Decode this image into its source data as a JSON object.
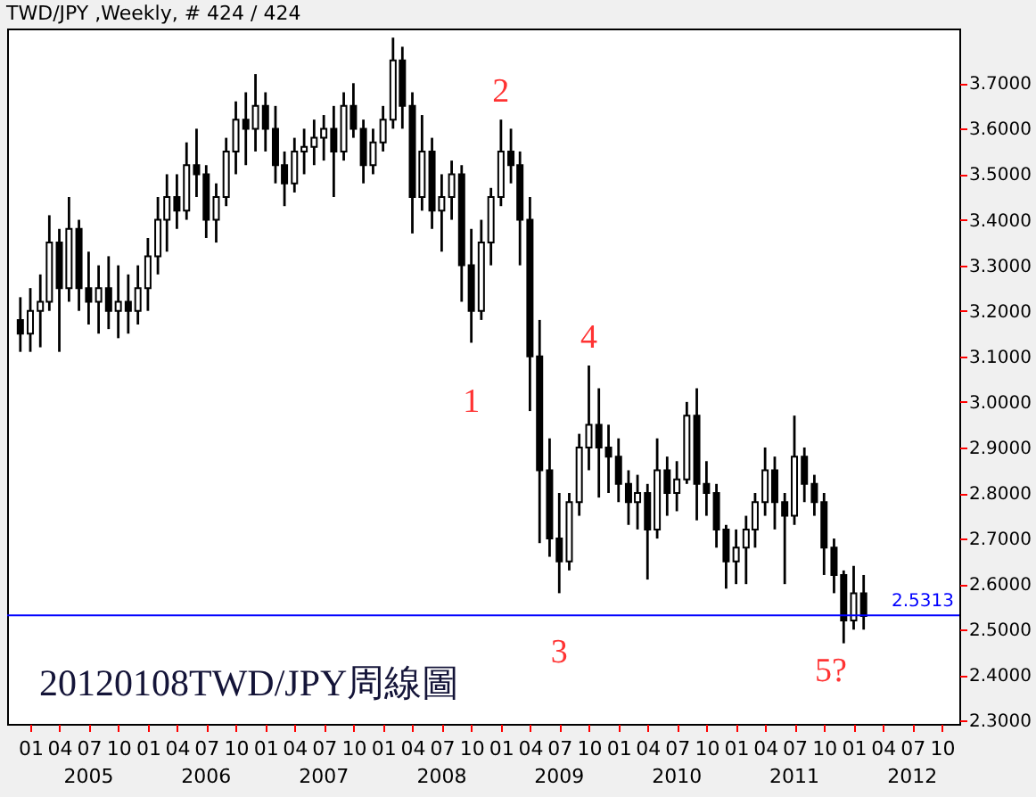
{
  "chart_data": {
    "type": "candlestick",
    "title": "TWD/JPY ,Weekly, # 424 / 424",
    "color": "#000000",
    "x": [
      "2004-12",
      "2005-01",
      "2005-02",
      "2005-03",
      "2005-04",
      "2005-05",
      "2005-06",
      "2005-07",
      "2005-08",
      "2005-09",
      "2005-10",
      "2005-11",
      "2005-12",
      "2006-01",
      "2006-02",
      "2006-03",
      "2006-04",
      "2006-05",
      "2006-06",
      "2006-07",
      "2006-08",
      "2006-09",
      "2006-10",
      "2006-11",
      "2006-12",
      "2007-01",
      "2007-02",
      "2007-03",
      "2007-04",
      "2007-05",
      "2007-06",
      "2007-07",
      "2007-08",
      "2007-09",
      "2007-10",
      "2007-11",
      "2007-12",
      "2008-01",
      "2008-02",
      "2008-03",
      "2008-04",
      "2008-05",
      "2008-06",
      "2008-07",
      "2008-08",
      "2008-09",
      "2008-10",
      "2008-11",
      "2008-12",
      "2009-01",
      "2009-02",
      "2009-03",
      "2009-04",
      "2009-05",
      "2009-06",
      "2009-07",
      "2009-08",
      "2009-09",
      "2009-10",
      "2009-11",
      "2009-12",
      "2010-01",
      "2010-02",
      "2010-03",
      "2010-04",
      "2010-05",
      "2010-06",
      "2010-07",
      "2010-08",
      "2010-09",
      "2010-10",
      "2010-11",
      "2010-12",
      "2011-01",
      "2011-02",
      "2011-03",
      "2011-04",
      "2011-05",
      "2011-06",
      "2011-07",
      "2011-08",
      "2011-09",
      "2011-10",
      "2011-11",
      "2011-12",
      "2012-01",
      "2012-02"
    ],
    "ohlc": [
      [
        3.18,
        3.23,
        3.11,
        3.15
      ],
      [
        3.15,
        3.25,
        3.11,
        3.2
      ],
      [
        3.2,
        3.28,
        3.12,
        3.22
      ],
      [
        3.22,
        3.41,
        3.2,
        3.35
      ],
      [
        3.35,
        3.38,
        3.11,
        3.25
      ],
      [
        3.25,
        3.45,
        3.22,
        3.38
      ],
      [
        3.38,
        3.4,
        3.2,
        3.25
      ],
      [
        3.25,
        3.33,
        3.17,
        3.22
      ],
      [
        3.22,
        3.3,
        3.15,
        3.25
      ],
      [
        3.25,
        3.32,
        3.16,
        3.2
      ],
      [
        3.2,
        3.3,
        3.14,
        3.22
      ],
      [
        3.22,
        3.28,
        3.15,
        3.2
      ],
      [
        3.2,
        3.3,
        3.17,
        3.25
      ],
      [
        3.25,
        3.36,
        3.2,
        3.32
      ],
      [
        3.32,
        3.45,
        3.28,
        3.4
      ],
      [
        3.4,
        3.5,
        3.33,
        3.45
      ],
      [
        3.45,
        3.5,
        3.38,
        3.42
      ],
      [
        3.42,
        3.57,
        3.4,
        3.52
      ],
      [
        3.52,
        3.6,
        3.45,
        3.5
      ],
      [
        3.5,
        3.52,
        3.36,
        3.4
      ],
      [
        3.4,
        3.48,
        3.35,
        3.45
      ],
      [
        3.45,
        3.58,
        3.43,
        3.55
      ],
      [
        3.55,
        3.66,
        3.5,
        3.62
      ],
      [
        3.62,
        3.68,
        3.52,
        3.6
      ],
      [
        3.6,
        3.72,
        3.55,
        3.65
      ],
      [
        3.65,
        3.68,
        3.55,
        3.6
      ],
      [
        3.6,
        3.65,
        3.48,
        3.52
      ],
      [
        3.52,
        3.55,
        3.43,
        3.48
      ],
      [
        3.48,
        3.58,
        3.46,
        3.55
      ],
      [
        3.55,
        3.6,
        3.5,
        3.56
      ],
      [
        3.56,
        3.62,
        3.52,
        3.58
      ],
      [
        3.58,
        3.63,
        3.53,
        3.6
      ],
      [
        3.6,
        3.65,
        3.45,
        3.55
      ],
      [
        3.55,
        3.68,
        3.53,
        3.65
      ],
      [
        3.65,
        3.7,
        3.58,
        3.6
      ],
      [
        3.6,
        3.62,
        3.48,
        3.52
      ],
      [
        3.52,
        3.6,
        3.5,
        3.57
      ],
      [
        3.57,
        3.65,
        3.55,
        3.62
      ],
      [
        3.62,
        3.8,
        3.6,
        3.75
      ],
      [
        3.75,
        3.78,
        3.6,
        3.65
      ],
      [
        3.65,
        3.68,
        3.37,
        3.45
      ],
      [
        3.45,
        3.63,
        3.42,
        3.55
      ],
      [
        3.55,
        3.58,
        3.38,
        3.42
      ],
      [
        3.42,
        3.5,
        3.33,
        3.45
      ],
      [
        3.45,
        3.53,
        3.4,
        3.5
      ],
      [
        3.5,
        3.52,
        3.22,
        3.3
      ],
      [
        3.3,
        3.38,
        3.13,
        3.2
      ],
      [
        3.2,
        3.4,
        3.18,
        3.35
      ],
      [
        3.35,
        3.47,
        3.3,
        3.45
      ],
      [
        3.45,
        3.62,
        3.43,
        3.55
      ],
      [
        3.55,
        3.6,
        3.48,
        3.52
      ],
      [
        3.52,
        3.55,
        3.3,
        3.4
      ],
      [
        3.4,
        3.45,
        2.98,
        3.1
      ],
      [
        3.1,
        3.18,
        2.69,
        2.85
      ],
      [
        2.85,
        2.92,
        2.66,
        2.7
      ],
      [
        2.7,
        2.8,
        2.58,
        2.65
      ],
      [
        2.65,
        2.8,
        2.63,
        2.78
      ],
      [
        2.78,
        2.93,
        2.75,
        2.9
      ],
      [
        2.9,
        3.08,
        2.85,
        2.95
      ],
      [
        2.95,
        3.03,
        2.79,
        2.9
      ],
      [
        2.9,
        2.95,
        2.8,
        2.88
      ],
      [
        2.88,
        2.92,
        2.78,
        2.82
      ],
      [
        2.82,
        2.85,
        2.73,
        2.78
      ],
      [
        2.78,
        2.84,
        2.72,
        2.8
      ],
      [
        2.8,
        2.82,
        2.61,
        2.72
      ],
      [
        2.72,
        2.92,
        2.7,
        2.85
      ],
      [
        2.85,
        2.88,
        2.75,
        2.8
      ],
      [
        2.8,
        2.87,
        2.76,
        2.83
      ],
      [
        2.83,
        3.0,
        2.82,
        2.97
      ],
      [
        2.97,
        3.03,
        2.74,
        2.82
      ],
      [
        2.82,
        2.87,
        2.75,
        2.8
      ],
      [
        2.8,
        2.82,
        2.68,
        2.72
      ],
      [
        2.72,
        2.73,
        2.59,
        2.65
      ],
      [
        2.65,
        2.72,
        2.6,
        2.68
      ],
      [
        2.68,
        2.75,
        2.6,
        2.72
      ],
      [
        2.72,
        2.8,
        2.68,
        2.78
      ],
      [
        2.78,
        2.9,
        2.75,
        2.85
      ],
      [
        2.85,
        2.88,
        2.72,
        2.78
      ],
      [
        2.78,
        2.8,
        2.6,
        2.75
      ],
      [
        2.75,
        2.97,
        2.73,
        2.88
      ],
      [
        2.88,
        2.9,
        2.78,
        2.82
      ],
      [
        2.82,
        2.84,
        2.75,
        2.78
      ],
      [
        2.78,
        2.8,
        2.62,
        2.68
      ],
      [
        2.68,
        2.7,
        2.58,
        2.62
      ],
      [
        2.62,
        2.63,
        2.47,
        2.52
      ],
      [
        2.52,
        2.64,
        2.5,
        2.58
      ],
      [
        2.58,
        2.62,
        2.5,
        2.53
      ]
    ],
    "xlim": [
      "2004-10-21",
      "2012-11-24"
    ],
    "ylim": [
      2.293,
      3.82
    ],
    "xticks": [
      {
        "value": "2005-01",
        "label": "01"
      },
      {
        "value": "2005-04",
        "label": "04"
      },
      {
        "value": "2005-07",
        "label": "07"
      },
      {
        "value": "2005-10",
        "label": "10"
      },
      {
        "value": "2006-01",
        "label": "01"
      },
      {
        "value": "2006-04",
        "label": "04"
      },
      {
        "value": "2006-07",
        "label": "07"
      },
      {
        "value": "2006-10",
        "label": "10"
      },
      {
        "value": "2007-01",
        "label": "01"
      },
      {
        "value": "2007-04",
        "label": "04"
      },
      {
        "value": "2007-07",
        "label": "07"
      },
      {
        "value": "2007-10",
        "label": "10"
      },
      {
        "value": "2008-01",
        "label": "01"
      },
      {
        "value": "2008-04",
        "label": "04"
      },
      {
        "value": "2008-07",
        "label": "07"
      },
      {
        "value": "2008-10",
        "label": "10"
      },
      {
        "value": "2009-01",
        "label": "01"
      },
      {
        "value": "2009-04",
        "label": "04"
      },
      {
        "value": "2009-07",
        "label": "07"
      },
      {
        "value": "2009-10",
        "label": "10"
      },
      {
        "value": "2010-01",
        "label": "01"
      },
      {
        "value": "2010-04",
        "label": "04"
      },
      {
        "value": "2010-07",
        "label": "07"
      },
      {
        "value": "2010-10",
        "label": "10"
      },
      {
        "value": "2011-01",
        "label": "01"
      },
      {
        "value": "2011-04",
        "label": "04"
      },
      {
        "value": "2011-07",
        "label": "07"
      },
      {
        "value": "2011-10",
        "label": "10"
      },
      {
        "value": "2012-01",
        "label": "01"
      },
      {
        "value": "2012-04",
        "label": "04"
      },
      {
        "value": "2012-07",
        "label": "07"
      },
      {
        "value": "2012-10",
        "label": "10"
      }
    ],
    "x2lim": [
      "2004-10-21",
      "2012-11-24"
    ],
    "x2ticks": [
      {
        "value": "2005-07",
        "label": "2005"
      },
      {
        "value": "2006-07",
        "label": "2006"
      },
      {
        "value": "2007-07",
        "label": "2007"
      },
      {
        "value": "2008-07",
        "label": "2008"
      },
      {
        "value": "2009-07",
        "label": "2009"
      },
      {
        "value": "2010-07",
        "label": "2010"
      },
      {
        "value": "2011-07",
        "label": "2011"
      },
      {
        "value": "2012-07",
        "label": "2012"
      }
    ],
    "yticks": [
      {
        "value": 2.3,
        "label": "2.3000"
      },
      {
        "value": 2.4,
        "label": "2.4000"
      },
      {
        "value": 2.5,
        "label": "2.5000"
      },
      {
        "value": 2.6,
        "label": "2.6000"
      },
      {
        "value": 2.7,
        "label": "2.7000"
      },
      {
        "value": 2.8,
        "label": "2.8000"
      },
      {
        "value": 2.9,
        "label": "2.9000"
      },
      {
        "value": 3.0,
        "label": "3.0000"
      },
      {
        "value": 3.1,
        "label": "3.1000"
      },
      {
        "value": 3.2,
        "label": "3.2000"
      },
      {
        "value": 3.3,
        "label": "3.3000"
      },
      {
        "value": 3.4,
        "label": "3.4000"
      },
      {
        "value": 3.5,
        "label": "3.5000"
      },
      {
        "value": 3.6,
        "label": "3.6000"
      },
      {
        "value": 3.7,
        "label": "3.7000"
      }
    ],
    "ref_lines": [
      {
        "axis": "y",
        "value": 2.5313,
        "label": "2.5313",
        "color": "#0000ff"
      }
    ],
    "annotations": [
      {
        "text": "1",
        "x": "2008-10",
        "y": 3.13
      },
      {
        "text": "2",
        "x": "2009-01",
        "y": 3.62
      },
      {
        "text": "3",
        "x": "2009-07",
        "y": 2.58
      },
      {
        "text": "4",
        "x": "2009-10",
        "y": 3.08
      },
      "5?",
      "20120108TWD/JPY周線圖"
    ],
    "grid": false
  }
}
